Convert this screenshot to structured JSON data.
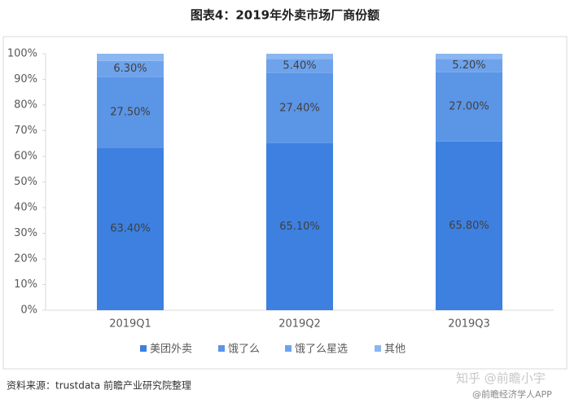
{
  "chart_data": {
    "type": "stacked_bar",
    "title": "图表4：2019年外卖市场厂商份额",
    "categories": [
      "2019Q1",
      "2019Q2",
      "2019Q3"
    ],
    "series": [
      {
        "name": "美团外卖",
        "color": "#3d80e0",
        "values": [
          63.4,
          65.1,
          65.8
        ],
        "value_labels": [
          "63.40%",
          "65.10%",
          "65.80%"
        ]
      },
      {
        "name": "饿了么",
        "color": "#5b95e6",
        "values": [
          27.5,
          27.4,
          27.0
        ],
        "value_labels": [
          "27.50%",
          "27.40%",
          "27.00%"
        ]
      },
      {
        "name": "饿了么星选",
        "color": "#6ea3ec",
        "values": [
          6.3,
          5.4,
          5.2
        ],
        "value_labels": [
          "6.30%",
          "5.40%",
          "5.20%"
        ]
      },
      {
        "name": "其他",
        "color": "#8ab6f2",
        "values": [
          2.8,
          2.1,
          2.0
        ]
      }
    ],
    "ylim": [
      0,
      100
    ],
    "yticks": [
      {
        "value": 0,
        "label": "0%"
      },
      {
        "value": 10,
        "label": "10%"
      },
      {
        "value": 20,
        "label": "20%"
      },
      {
        "value": 30,
        "label": "30%"
      },
      {
        "value": 40,
        "label": "40%"
      },
      {
        "value": 50,
        "label": "50%"
      },
      {
        "value": 60,
        "label": "60%"
      },
      {
        "value": 70,
        "label": "70%"
      },
      {
        "value": 80,
        "label": "80%"
      },
      {
        "value": 90,
        "label": "90%"
      },
      {
        "value": 100,
        "label": "100%"
      }
    ],
    "legend": "bottom",
    "source": "资料来源：trustdata 前瞻产业研究院整理",
    "watermarks": [
      "知乎 @前瞻小宇",
      "@前瞻经济学人APP"
    ]
  }
}
